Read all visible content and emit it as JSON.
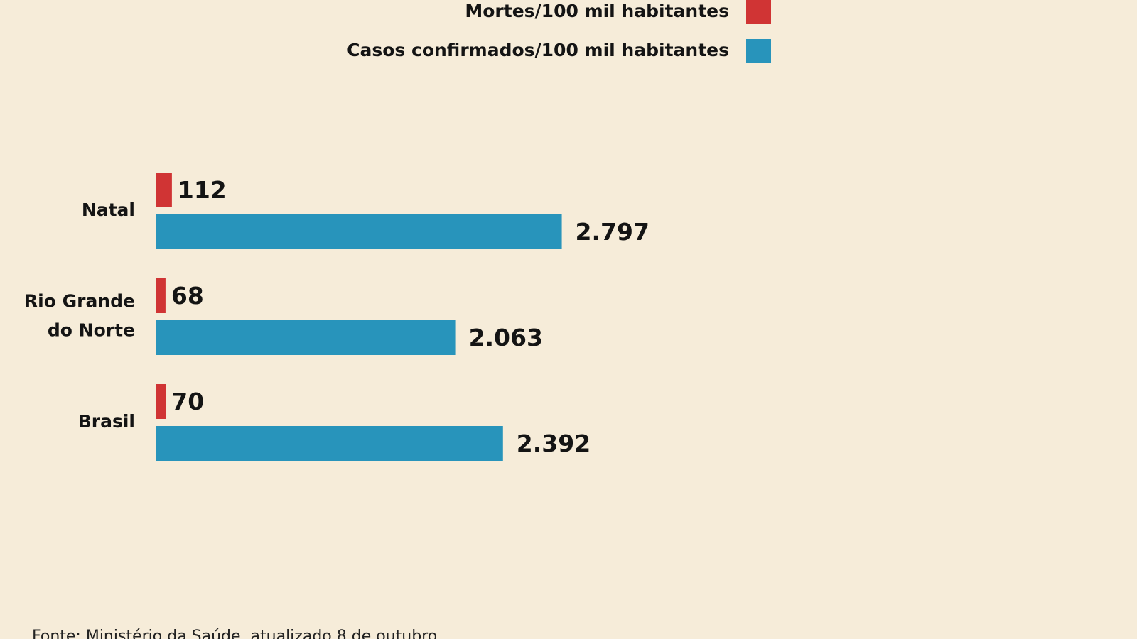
{
  "chart_data": {
    "type": "bar",
    "orientation": "horizontal",
    "categories": [
      "Natal",
      "Rio Grande do Norte",
      "Brasil"
    ],
    "category_lines": [
      [
        "Natal"
      ],
      [
        "Rio Grande",
        "do Norte"
      ],
      [
        "Brasil"
      ]
    ],
    "series": [
      {
        "name": "Mortes/100 mil habitantes",
        "color": "#d03434",
        "values": [
          112,
          68,
          70
        ],
        "labels": [
          "112",
          "68",
          "70"
        ]
      },
      {
        "name": "Casos confirmados/100 mil habitantes",
        "color": "#2894bb",
        "values": [
          2797,
          2063,
          2392
        ],
        "labels": [
          "2.797",
          "2.063",
          "2.392"
        ]
      }
    ],
    "legend_position": "top",
    "grid": false,
    "xlim": [
      0,
      4600
    ]
  },
  "source": "Fonte: Ministério da Saúde, atualizado 8 de outubro"
}
